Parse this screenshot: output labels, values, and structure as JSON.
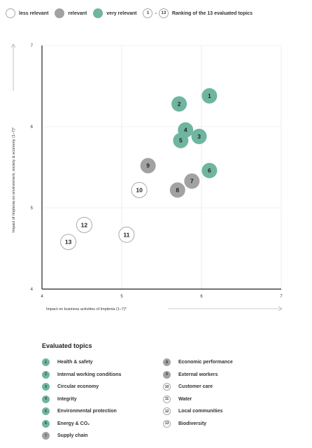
{
  "legend": {
    "items": [
      {
        "label": "less relevant",
        "key": "less"
      },
      {
        "label": "relevant",
        "key": "rel"
      },
      {
        "label": "very relevant",
        "key": "very"
      }
    ],
    "rank_from": "1",
    "rank_dash": "-",
    "rank_to": "13",
    "rank_label": "Ranking of the 13 evaluated topics"
  },
  "colors": {
    "very": "#6fb5a0",
    "rel": "#a3a2a2",
    "less": "#ffffff",
    "less_border": "#a9a9a9",
    "axis": "#555555",
    "grid": "#e1e1e1"
  },
  "chart_data": {
    "type": "scatter",
    "xlabel": "Impact on business activities of Implenia (1–7)*",
    "ylabel": "Impact of Implenia on environment, society & economy (1–7)*",
    "xlim": [
      4,
      7
    ],
    "ylim": [
      4,
      7
    ],
    "xticks": [
      "4",
      "5",
      "6",
      "7"
    ],
    "yticks": [
      "4",
      "5",
      "6",
      "7"
    ],
    "grid": true,
    "points": [
      {
        "label": "1",
        "x": 6.1,
        "y": 6.38,
        "level": "very"
      },
      {
        "label": "2",
        "x": 5.72,
        "y": 6.28,
        "level": "very"
      },
      {
        "label": "3",
        "x": 5.97,
        "y": 5.88,
        "level": "very"
      },
      {
        "label": "4",
        "x": 5.8,
        "y": 5.96,
        "level": "very"
      },
      {
        "label": "5",
        "x": 5.74,
        "y": 5.83,
        "level": "very"
      },
      {
        "label": "6",
        "x": 6.1,
        "y": 5.46,
        "level": "very"
      },
      {
        "label": "7",
        "x": 5.88,
        "y": 5.33,
        "level": "rel"
      },
      {
        "label": "8",
        "x": 5.7,
        "y": 5.22,
        "level": "rel"
      },
      {
        "label": "9",
        "x": 5.33,
        "y": 5.52,
        "level": "rel"
      },
      {
        "label": "10",
        "x": 5.22,
        "y": 5.22,
        "level": "less"
      },
      {
        "label": "11",
        "x": 5.06,
        "y": 4.67,
        "level": "less"
      },
      {
        "label": "12",
        "x": 4.53,
        "y": 4.79,
        "level": "less"
      },
      {
        "label": "13",
        "x": 4.33,
        "y": 4.58,
        "level": "less"
      }
    ]
  },
  "topics": {
    "title": "Evaluated topics",
    "items": [
      {
        "num": "1",
        "label": "Health & safety",
        "level": "very"
      },
      {
        "num": "2",
        "label": "Internal working conditions",
        "level": "very"
      },
      {
        "num": "3",
        "label": "Circular economy",
        "level": "very"
      },
      {
        "num": "4",
        "label": "Integrity",
        "level": "very"
      },
      {
        "num": "5",
        "label": "Environmental protection",
        "level": "very"
      },
      {
        "num": "6",
        "label": "Energy & CO₂",
        "level": "very"
      },
      {
        "num": "7",
        "label": "Supply chain",
        "level": "rel"
      },
      {
        "num": "8",
        "label": "Economic performance",
        "level": "rel"
      },
      {
        "num": "9",
        "label": "External workers",
        "level": "rel"
      },
      {
        "num": "10",
        "label": "Customer care",
        "level": "less"
      },
      {
        "num": "11",
        "label": "Water",
        "level": "less"
      },
      {
        "num": "12",
        "label": "Local communities",
        "level": "less"
      },
      {
        "num": "13",
        "label": "Biodiversity",
        "level": "less"
      }
    ]
  }
}
